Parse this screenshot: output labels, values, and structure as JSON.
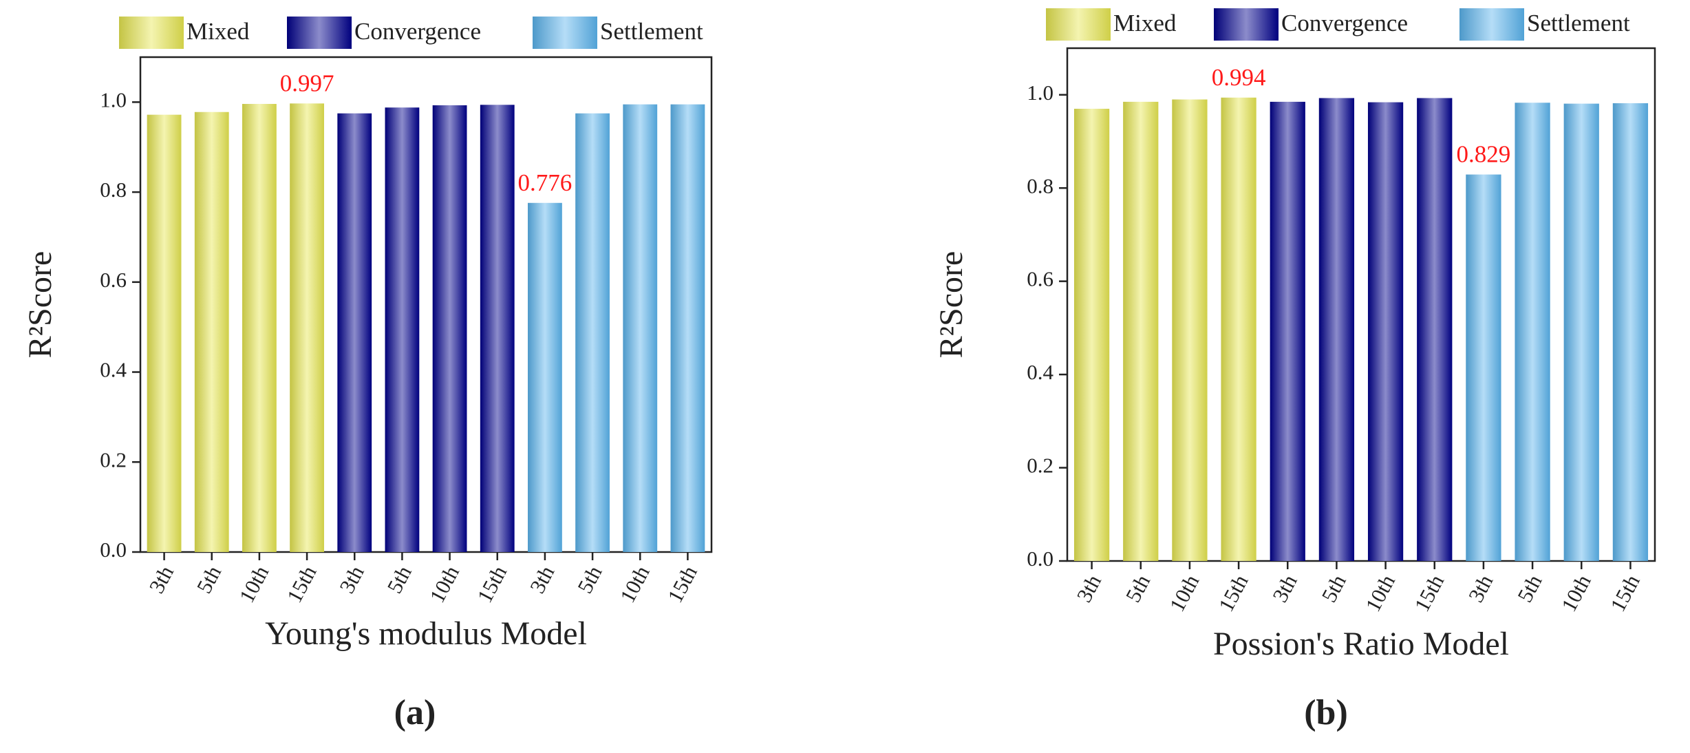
{
  "chart_data": [
    {
      "type": "bar",
      "xlabel": "Young's modulus Model",
      "ylabel": "R²Score",
      "panel_label": "(a)",
      "categories": [
        "3th",
        "5th",
        "10th",
        "15th",
        "3th",
        "5th",
        "10th",
        "15th",
        "3th",
        "5th",
        "10th",
        "15th"
      ],
      "series": [
        {
          "name": "Mixed",
          "color": "#e6e650",
          "values": [
            0.972,
            0.978,
            0.996,
            0.997,
            null,
            null,
            null,
            null,
            null,
            null,
            null,
            null
          ],
          "value_labels": [
            null,
            null,
            null,
            "0.997",
            null,
            null,
            null,
            null,
            null,
            null,
            null,
            null
          ]
        },
        {
          "name": "Convergence",
          "color": "#00008c",
          "values": [
            null,
            null,
            null,
            null,
            0.975,
            0.988,
            0.993,
            0.994,
            null,
            null,
            null,
            null
          ]
        },
        {
          "name": "Settlement",
          "color": "#5ab4ee",
          "values": [
            null,
            null,
            null,
            null,
            null,
            null,
            null,
            null,
            0.776,
            0.975,
            0.995,
            0.995
          ],
          "value_labels": [
            null,
            null,
            null,
            null,
            null,
            null,
            null,
            null,
            "0.776",
            null,
            null,
            null
          ]
        }
      ],
      "ylim": [
        0,
        1.1
      ],
      "yticks": [
        {
          "value": 0,
          "label": "0.0"
        },
        0.2,
        0.4,
        0.6,
        0.8,
        {
          "value": 1,
          "label": "1.0"
        }
      ],
      "legend": "top"
    },
    {
      "type": "bar",
      "xlabel": "Possion's Ratio Model",
      "ylabel": "R²Score",
      "panel_label": "(b)",
      "categories": [
        "3th",
        "5th",
        "10th",
        "15th",
        "3th",
        "5th",
        "10th",
        "15th",
        "3th",
        "5th",
        "10th",
        "15th"
      ],
      "series": [
        {
          "name": "Mixed",
          "color": "#e6e650",
          "values": [
            0.97,
            0.985,
            0.99,
            0.994,
            null,
            null,
            null,
            null,
            null,
            null,
            null,
            null
          ],
          "value_labels": [
            null,
            null,
            null,
            "0.994",
            null,
            null,
            null,
            null,
            null,
            null,
            null,
            null
          ]
        },
        {
          "name": "Convergence",
          "color": "#00008c",
          "values": [
            null,
            null,
            null,
            null,
            0.985,
            0.993,
            0.984,
            0.993,
            null,
            null,
            null,
            null
          ]
        },
        {
          "name": "Settlement",
          "color": "#5ab4ee",
          "values": [
            null,
            null,
            null,
            null,
            null,
            null,
            null,
            null,
            0.829,
            0.983,
            0.981,
            0.982
          ],
          "value_labels": [
            null,
            null,
            null,
            null,
            null,
            null,
            null,
            null,
            "0.829",
            null,
            null,
            null
          ]
        }
      ],
      "ylim": [
        0,
        1.1
      ],
      "yticks": [
        {
          "value": 0,
          "label": "0.0"
        },
        0.2,
        0.4,
        0.6,
        0.8,
        {
          "value": 1,
          "label": "1.0"
        }
      ],
      "legend": "top"
    }
  ]
}
